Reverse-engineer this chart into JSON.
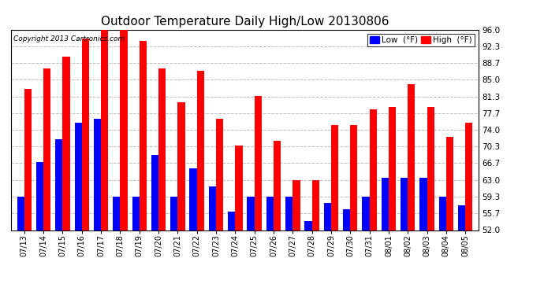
{
  "title": "Outdoor Temperature Daily High/Low 20130806",
  "copyright": "Copyright 2013 Cartronics.com",
  "dates": [
    "07/13",
    "07/14",
    "07/15",
    "07/16",
    "07/17",
    "07/18",
    "07/19",
    "07/20",
    "07/21",
    "07/22",
    "07/23",
    "07/24",
    "07/25",
    "07/26",
    "07/27",
    "07/28",
    "07/29",
    "07/30",
    "07/31",
    "08/01",
    "08/02",
    "08/03",
    "08/04",
    "08/05"
  ],
  "high": [
    83.0,
    87.5,
    90.0,
    94.0,
    96.0,
    96.5,
    93.5,
    87.5,
    80.0,
    87.0,
    76.5,
    70.5,
    81.5,
    71.5,
    63.0,
    63.0,
    75.0,
    75.0,
    78.5,
    79.0,
    84.0,
    79.0,
    72.5,
    75.5
  ],
  "low": [
    59.3,
    67.0,
    72.0,
    75.5,
    76.5,
    59.3,
    59.3,
    68.5,
    59.3,
    65.5,
    61.5,
    56.0,
    59.3,
    59.3,
    59.3,
    54.0,
    58.0,
    56.5,
    59.3,
    63.5,
    63.5,
    63.5,
    59.3,
    57.5
  ],
  "bar_width": 0.38,
  "high_color": "#ff0000",
  "low_color": "#0000ff",
  "bg_color": "#ffffff",
  "grid_color": "#bbbbbb",
  "ymin": 52.0,
  "ymax": 96.0,
  "yticks": [
    52.0,
    55.7,
    59.3,
    63.0,
    66.7,
    70.3,
    74.0,
    77.7,
    81.3,
    85.0,
    88.7,
    92.3,
    96.0
  ],
  "title_fontsize": 11,
  "legend_low_label": "Low  (°F)",
  "legend_high_label": "High  (°F)"
}
